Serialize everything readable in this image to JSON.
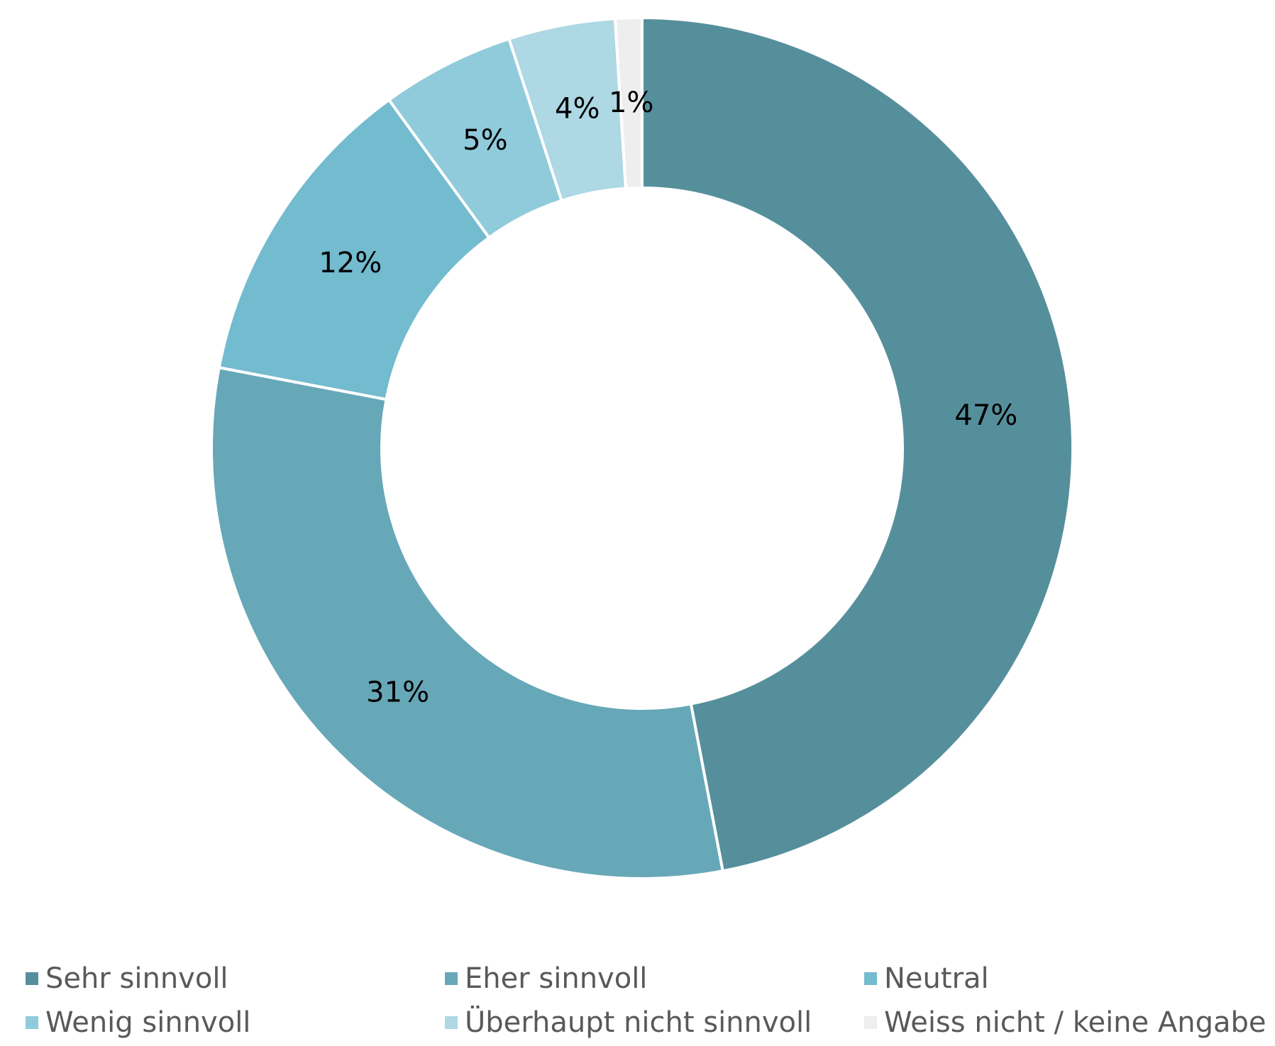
{
  "chart_data": {
    "type": "pie",
    "variant": "donut",
    "categories": [
      "Sehr sinnvoll",
      "Eher sinnvoll",
      "Neutral",
      "Wenig sinnvoll",
      "Überhaupt nicht sinnvoll",
      "Weiss nicht / keine Angabe"
    ],
    "values": [
      47,
      31,
      12,
      5,
      4,
      1
    ],
    "data_labels": [
      "47%",
      "31%",
      "12%",
      "5%",
      "4%",
      "1%"
    ],
    "colors": [
      "#568f9c",
      "#67a8b8",
      "#73bbcf",
      "#90cbdb",
      "#add8e4",
      "#eeeeee"
    ],
    "unit": "%",
    "legend_position": "bottom"
  }
}
